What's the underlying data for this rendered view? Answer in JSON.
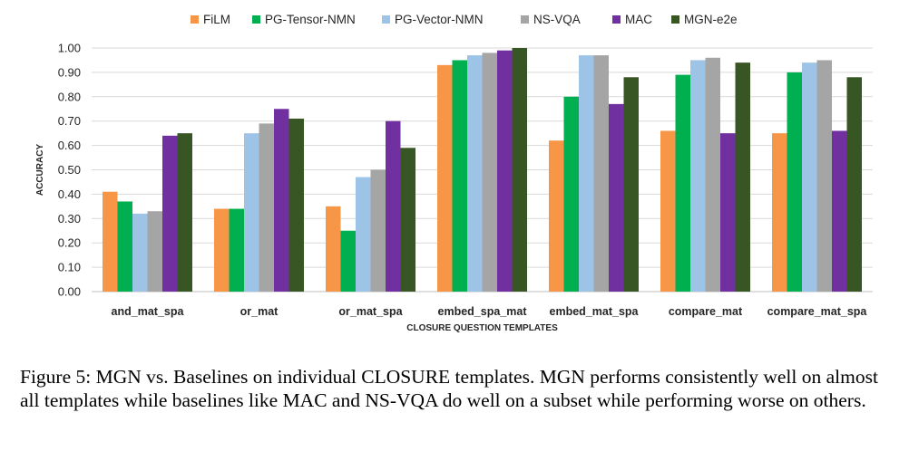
{
  "chart_data": {
    "type": "bar",
    "title": "",
    "xlabel": "CLOSURE QUESTION TEMPLATES",
    "ylabel": "ACCURACY",
    "ylim": [
      0,
      1.0
    ],
    "yticks": [
      "0.00",
      "0.10",
      "0.20",
      "0.30",
      "0.40",
      "0.50",
      "0.60",
      "0.70",
      "0.80",
      "0.90",
      "1.00"
    ],
    "grid": true,
    "legend_position": "top",
    "categories": [
      "and_mat_spa",
      "or_mat",
      "or_mat_spa",
      "embed_spa_mat",
      "embed_mat_spa",
      "compare_mat",
      "compare_mat_spa"
    ],
    "series": [
      {
        "name": "FiLM",
        "color": "#f79646",
        "values": [
          0.41,
          0.34,
          0.35,
          0.93,
          0.62,
          0.66,
          0.65
        ]
      },
      {
        "name": "PG-Tensor-NMN",
        "color": "#00b050",
        "values": [
          0.37,
          0.34,
          0.25,
          0.95,
          0.8,
          0.89,
          0.9
        ]
      },
      {
        "name": "PG-Vector-NMN",
        "color": "#9dc3e6",
        "values": [
          0.32,
          0.65,
          0.47,
          0.97,
          0.97,
          0.95,
          0.94
        ]
      },
      {
        "name": "NS-VQA",
        "color": "#a5a5a5",
        "values": [
          0.33,
          0.69,
          0.5,
          0.98,
          0.97,
          0.96,
          0.95
        ]
      },
      {
        "name": "MAC",
        "color": "#7030a0",
        "values": [
          0.64,
          0.75,
          0.7,
          0.99,
          0.77,
          0.65,
          0.66
        ]
      },
      {
        "name": "MGN-e2e",
        "color": "#375623",
        "values": [
          0.65,
          0.71,
          0.59,
          1.0,
          0.88,
          0.94,
          0.88
        ]
      }
    ]
  },
  "caption": "Figure 5: MGN vs. Baselines on individual CLOSURE templates. MGN performs consistently well on almost all templates while baselines like MAC and NS-VQA do well on a subset while performing worse on others."
}
